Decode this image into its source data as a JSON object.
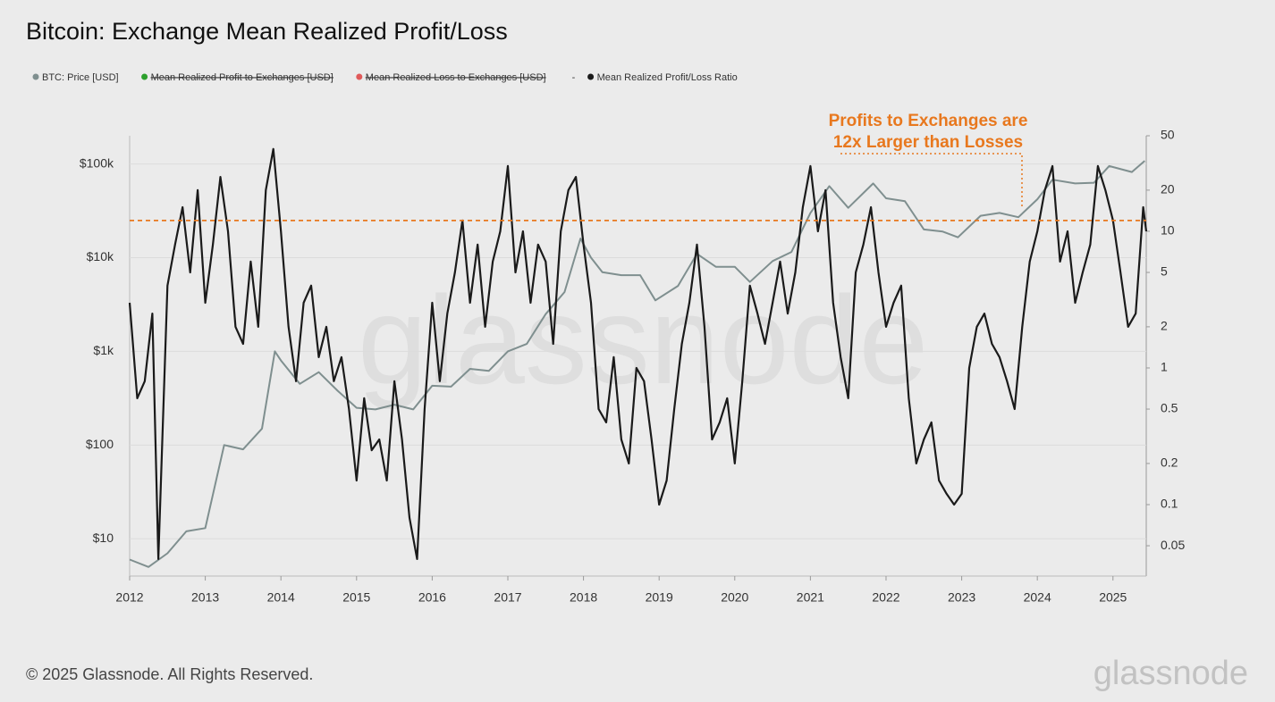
{
  "chart_data": {
    "type": "line",
    "title": "Bitcoin: Exchange Mean Realized Profit/Loss",
    "legend": [
      {
        "name": "BTC: Price [USD]",
        "color": "#7f8f8f",
        "hidden": false
      },
      {
        "name": "Mean Realized Profit to Exchanges [USD]",
        "color": "#2ca02c",
        "hidden": true
      },
      {
        "name": "Mean Realized Loss to Exchanges [USD]",
        "color": "#e05a5a",
        "hidden": true
      },
      {
        "name": "Mean Realized Profit/Loss Ratio",
        "color": "#1a1a1a",
        "hidden": false,
        "prefix": "-"
      }
    ],
    "xlim": [
      2012,
      2025.44
    ],
    "xticks": [
      2012,
      2013,
      2014,
      2015,
      2016,
      2017,
      2018,
      2019,
      2020,
      2021,
      2022,
      2023,
      2024,
      2025
    ],
    "ylog": true,
    "ylim": [
      4,
      200000
    ],
    "yticks": [
      {
        "value": 10,
        "label": "$10"
      },
      {
        "value": 100,
        "label": "$100"
      },
      {
        "value": 1000,
        "label": "$1k"
      },
      {
        "value": 10000,
        "label": "$10k"
      },
      {
        "value": 100000,
        "label": "$100k"
      }
    ],
    "y2log": true,
    "y2lim": [
      0.03,
      50
    ],
    "y2ticks": [
      0.05,
      0.1,
      0.2,
      0.5,
      1,
      2,
      5,
      10,
      20,
      50
    ],
    "reference_line": {
      "value": 12,
      "axis": "y2",
      "color": "#e8781e"
    },
    "annotation": [
      "Profits to Exchanges are",
      "12x Larger than Losses"
    ],
    "series": [
      {
        "name": "BTC: Price [USD]",
        "color": "#7f8f8f",
        "axis": "y",
        "x": [
          2012.0,
          2012.25,
          2012.5,
          2012.75,
          2013.0,
          2013.25,
          2013.5,
          2013.75,
          2013.92,
          2014.0,
          2014.25,
          2014.5,
          2014.75,
          2015.0,
          2015.25,
          2015.5,
          2015.75,
          2016.0,
          2016.25,
          2016.5,
          2016.75,
          2017.0,
          2017.25,
          2017.5,
          2017.75,
          2017.96,
          2018.1,
          2018.25,
          2018.5,
          2018.75,
          2018.95,
          2019.25,
          2019.5,
          2019.75,
          2020.0,
          2020.2,
          2020.5,
          2020.75,
          2021.0,
          2021.25,
          2021.5,
          2021.83,
          2022.0,
          2022.25,
          2022.5,
          2022.75,
          2022.95,
          2023.25,
          2023.5,
          2023.75,
          2024.0,
          2024.2,
          2024.5,
          2024.75,
          2024.95,
          2025.25,
          2025.42
        ],
        "values": [
          6,
          5,
          7,
          12,
          13,
          100,
          90,
          150,
          1000,
          800,
          450,
          600,
          380,
          250,
          240,
          270,
          240,
          430,
          420,
          650,
          620,
          1000,
          1200,
          2500,
          4300,
          16000,
          10000,
          7000,
          6500,
          6500,
          3500,
          5000,
          11000,
          8000,
          8000,
          5500,
          9200,
          11500,
          30000,
          58000,
          34000,
          62000,
          43000,
          40000,
          20000,
          19000,
          16500,
          28000,
          30000,
          27000,
          42000,
          68000,
          62000,
          63000,
          95000,
          82000,
          108000
        ]
      },
      {
        "name": "Mean Realized Profit/Loss Ratio",
        "color": "#1a1a1a",
        "axis": "y2",
        "x": [
          2012.0,
          2012.1,
          2012.2,
          2012.3,
          2012.38,
          2012.5,
          2012.6,
          2012.7,
          2012.8,
          2012.9,
          2013.0,
          2013.1,
          2013.2,
          2013.3,
          2013.4,
          2013.5,
          2013.6,
          2013.7,
          2013.8,
          2013.9,
          2014.0,
          2014.1,
          2014.2,
          2014.3,
          2014.4,
          2014.5,
          2014.6,
          2014.7,
          2014.8,
          2014.9,
          2015.0,
          2015.1,
          2015.2,
          2015.3,
          2015.4,
          2015.5,
          2015.6,
          2015.7,
          2015.8,
          2015.9,
          2016.0,
          2016.1,
          2016.2,
          2016.3,
          2016.4,
          2016.5,
          2016.6,
          2016.7,
          2016.8,
          2016.9,
          2017.0,
          2017.1,
          2017.2,
          2017.3,
          2017.4,
          2017.5,
          2017.6,
          2017.7,
          2017.8,
          2017.9,
          2018.0,
          2018.1,
          2018.2,
          2018.3,
          2018.4,
          2018.5,
          2018.6,
          2018.7,
          2018.8,
          2018.9,
          2019.0,
          2019.1,
          2019.2,
          2019.3,
          2019.4,
          2019.5,
          2019.6,
          2019.7,
          2019.8,
          2019.9,
          2020.0,
          2020.1,
          2020.2,
          2020.3,
          2020.4,
          2020.5,
          2020.6,
          2020.7,
          2020.8,
          2020.9,
          2021.0,
          2021.1,
          2021.2,
          2021.3,
          2021.4,
          2021.5,
          2021.6,
          2021.7,
          2021.8,
          2021.9,
          2022.0,
          2022.1,
          2022.2,
          2022.3,
          2022.4,
          2022.5,
          2022.6,
          2022.7,
          2022.8,
          2022.9,
          2023.0,
          2023.1,
          2023.2,
          2023.3,
          2023.4,
          2023.5,
          2023.6,
          2023.7,
          2023.8,
          2023.9,
          2024.0,
          2024.1,
          2024.2,
          2024.3,
          2024.4,
          2024.5,
          2024.6,
          2024.7,
          2024.8,
          2024.9,
          2025.0,
          2025.1,
          2025.2,
          2025.3,
          2025.4,
          2025.44
        ],
        "values": [
          3,
          0.6,
          0.8,
          2.5,
          0.04,
          4,
          8,
          15,
          5,
          20,
          3,
          8,
          25,
          10,
          2,
          1.5,
          6,
          2,
          20,
          40,
          10,
          2,
          0.8,
          3,
          4,
          1.2,
          2,
          0.8,
          1.2,
          0.5,
          0.15,
          0.6,
          0.25,
          0.3,
          0.15,
          0.8,
          0.3,
          0.08,
          0.04,
          0.5,
          3,
          0.8,
          2.5,
          5,
          12,
          3,
          8,
          2,
          6,
          10,
          30,
          5,
          10,
          3,
          8,
          6,
          1.5,
          10,
          20,
          25,
          8,
          3,
          0.5,
          0.4,
          1.2,
          0.3,
          0.2,
          1,
          0.8,
          0.3,
          0.1,
          0.15,
          0.5,
          1.5,
          3,
          8,
          2,
          0.3,
          0.4,
          0.6,
          0.2,
          0.8,
          4,
          2.5,
          1.5,
          3,
          6,
          2.5,
          5,
          15,
          30,
          10,
          20,
          3,
          1.2,
          0.6,
          5,
          8,
          15,
          5,
          2,
          3,
          4,
          0.6,
          0.2,
          0.3,
          0.4,
          0.15,
          0.12,
          0.1,
          0.12,
          1,
          2,
          2.5,
          1.5,
          1.2,
          0.8,
          0.5,
          2,
          6,
          10,
          20,
          30,
          6,
          10,
          3,
          5,
          8,
          30,
          20,
          12,
          5,
          2,
          2.5,
          15,
          10
        ]
      }
    ],
    "watermark": "glassnode",
    "footer": "© 2025 Glassnode. All Rights Reserved.",
    "logo": "glassnode"
  }
}
